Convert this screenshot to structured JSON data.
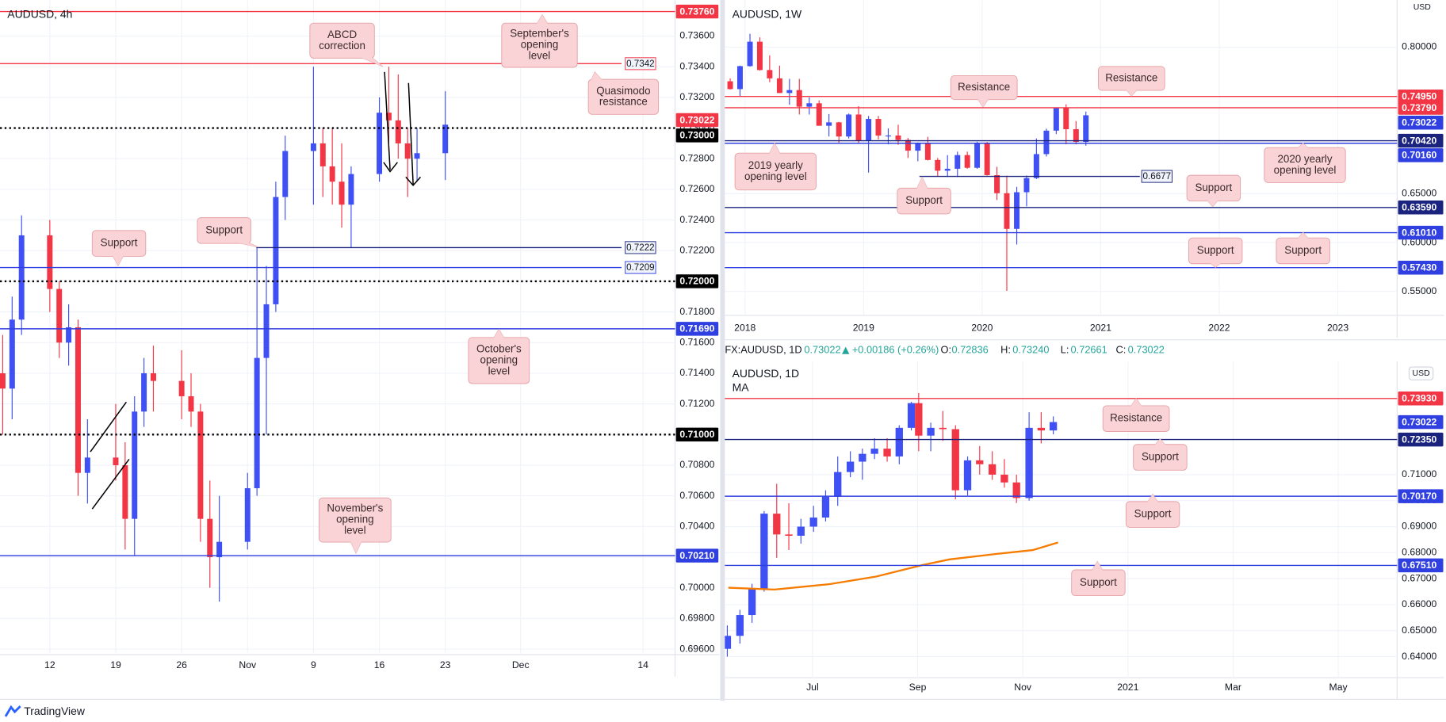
{
  "chart_data": [
    {
      "type": "candlestick",
      "title": "AUDUSD, 4h",
      "x": [
        6,
        7,
        8,
        11,
        12,
        13,
        14,
        15,
        18,
        19,
        20,
        21,
        22,
        25,
        26,
        27,
        28,
        29,
        32,
        33,
        34,
        35,
        36,
        39,
        40,
        41,
        42,
        43,
        46,
        47,
        48,
        49,
        50,
        53
      ],
      "open": [
        0.714,
        0.713,
        0.7175,
        0.723,
        0.7195,
        0.716,
        0.717,
        0.7075,
        0.7085,
        0.708,
        0.7045,
        0.7115,
        0.714,
        0.7135,
        0.7125,
        0.7115,
        0.7045,
        0.702,
        0.703,
        0.7065,
        0.715,
        0.7185,
        0.7255,
        0.7285,
        0.729,
        0.7275,
        0.7265,
        0.725,
        0.727,
        0.731,
        0.7305,
        0.729,
        0.728,
        0.72836
      ],
      "high": [
        0.7165,
        0.719,
        0.7243,
        0.724,
        0.72,
        0.7185,
        0.7175,
        0.711,
        0.712,
        0.7095,
        0.7125,
        0.715,
        0.7158,
        0.7155,
        0.714,
        0.712,
        0.707,
        0.706,
        0.7075,
        0.7222,
        0.721,
        0.7265,
        0.7295,
        0.734,
        0.73,
        0.73,
        0.729,
        0.7275,
        0.732,
        0.734,
        0.7335,
        0.73,
        0.73,
        0.7324
      ],
      "low": [
        0.71,
        0.711,
        0.7165,
        0.718,
        0.715,
        0.7145,
        0.706,
        0.7055,
        0.707,
        0.7025,
        0.7021,
        0.7105,
        0.7115,
        0.711,
        0.7105,
        0.703,
        0.7,
        0.6991,
        0.7025,
        0.706,
        0.71,
        0.718,
        0.724,
        0.725,
        0.7255,
        0.725,
        0.7235,
        0.7222,
        0.7265,
        0.7285,
        0.728,
        0.7255,
        0.7265,
        0.72661
      ],
      "close": [
        0.713,
        0.7175,
        0.723,
        0.7195,
        0.716,
        0.717,
        0.7075,
        0.7085,
        0.708,
        0.7045,
        0.7115,
        0.714,
        0.7135,
        0.7125,
        0.7115,
        0.7045,
        0.702,
        0.703,
        0.7065,
        0.715,
        0.7185,
        0.7255,
        0.7285,
        0.729,
        0.7275,
        0.7265,
        0.725,
        0.727,
        0.731,
        0.7305,
        0.729,
        0.728,
        0.72836,
        0.73022
      ],
      "up_color": "#3f51f5",
      "down_color": "#f23645",
      "xlim": [
        5.71,
        77.4
      ],
      "xticks": [
        {
          "value": 11,
          "label": "12"
        },
        {
          "value": 18,
          "label": "19"
        },
        {
          "value": 25,
          "label": "26"
        },
        {
          "value": 32,
          "label": "Nov"
        },
        {
          "value": 39,
          "label": "9"
        },
        {
          "value": 46,
          "label": "16"
        },
        {
          "value": 53,
          "label": "23"
        },
        {
          "value": 61,
          "label": "Dec"
        },
        {
          "value": 74,
          "label": "14"
        }
      ],
      "ylim": [
        0.69564,
        0.73835
      ],
      "yticks": [
        {
          "value": 0.696,
          "label": "0.69600"
        },
        {
          "value": 0.698,
          "label": "0.69800"
        },
        {
          "value": 0.7,
          "label": "0.70000"
        },
        {
          "value": 0.702,
          "label": "0.70200"
        },
        {
          "value": 0.704,
          "label": "0.70400"
        },
        {
          "value": 0.706,
          "label": "0.70600"
        },
        {
          "value": 0.708,
          "label": "0.70800"
        },
        {
          "value": 0.71,
          "label": "0.71000"
        },
        {
          "value": 0.712,
          "label": "0.71200"
        },
        {
          "value": 0.714,
          "label": "0.71400"
        },
        {
          "value": 0.716,
          "label": "0.71600"
        },
        {
          "value": 0.718,
          "label": "0.71800"
        },
        {
          "value": 0.72,
          "label": "0.72000"
        },
        {
          "value": 0.722,
          "label": "0.72200"
        },
        {
          "value": 0.724,
          "label": "0.72400"
        },
        {
          "value": 0.726,
          "label": "0.72600"
        },
        {
          "value": 0.728,
          "label": "0.72800"
        },
        {
          "value": 0.73,
          "label": "0.73000"
        },
        {
          "value": 0.732,
          "label": "0.73200"
        },
        {
          "value": 0.734,
          "label": "0.73400"
        },
        {
          "value": 0.736,
          "label": "0.73600"
        }
      ],
      "grid": true,
      "levels": [
        {
          "value": 0.7376,
          "label": "0.73760",
          "color": "#f23645",
          "style": "solid"
        },
        {
          "value": 0.7342,
          "label": "0.7342",
          "color": "#f23645",
          "style": "solid"
        },
        {
          "value": 0.73,
          "label": "0.73000",
          "color": "#000000",
          "style": "dotted"
        },
        {
          "value": 0.73022,
          "label": "0.73022",
          "color": "#f23645",
          "style": "none"
        },
        {
          "value": 0.7222,
          "label": "0.7222",
          "color": "#1a237e",
          "style": "solid"
        },
        {
          "value": 0.7209,
          "label": "0.7209",
          "color": "#2f3fe0",
          "style": "solid"
        },
        {
          "value": 0.72,
          "label": "0.72000",
          "color": "#000000",
          "style": "dotted"
        },
        {
          "value": 0.7169,
          "label": "0.71690",
          "color": "#2f3fe0",
          "style": "solid"
        },
        {
          "value": 0.71,
          "label": "0.71000",
          "color": "#000000",
          "style": "dotted"
        },
        {
          "value": 0.7021,
          "label": "0.70210",
          "color": "#2f3fe0",
          "style": "solid"
        }
      ],
      "annotations": [
        {
          "lines": [
            "ABCD",
            "correction"
          ]
        },
        {
          "lines": [
            "September's",
            "opening",
            "level"
          ]
        },
        {
          "lines": [
            "Quasimodo",
            "resistance"
          ]
        },
        {
          "lines": [
            "Support"
          ]
        },
        {
          "lines": [
            "Support"
          ]
        },
        {
          "lines": [
            "October's",
            "opening",
            "level"
          ]
        },
        {
          "lines": [
            "November's",
            "opening",
            "level"
          ]
        }
      ]
    },
    {
      "type": "candlestick",
      "title": "AUDUSD, 1W",
      "axis_unit": "USD",
      "x": [
        2017.875,
        2017.958,
        2018.042,
        2018.125,
        2018.208,
        2018.292,
        2018.375,
        2018.458,
        2018.542,
        2018.625,
        2018.708,
        2018.792,
        2018.875,
        2018.958,
        2019.042,
        2019.125,
        2019.208,
        2019.292,
        2019.375,
        2019.458,
        2019.542,
        2019.625,
        2019.708,
        2019.792,
        2019.875,
        2019.958,
        2020.042,
        2020.125,
        2020.208,
        2020.292,
        2020.375,
        2020.458,
        2020.542,
        2020.625,
        2020.708,
        2020.792,
        2020.875
      ],
      "open": [
        0.765,
        0.757,
        0.7805,
        0.8055,
        0.7765,
        0.768,
        0.753,
        0.756,
        0.739,
        0.7425,
        0.7195,
        0.723,
        0.7085,
        0.731,
        0.7045,
        0.7265,
        0.7095,
        0.7095,
        0.705,
        0.694,
        0.702,
        0.6845,
        0.6735,
        0.6755,
        0.6895,
        0.6765,
        0.702,
        0.669,
        0.6505,
        0.614,
        0.6515,
        0.666,
        0.6905,
        0.7145,
        0.7375,
        0.716,
        0.703
      ],
      "high": [
        0.768,
        0.781,
        0.8136,
        0.81,
        0.7915,
        0.781,
        0.7675,
        0.7675,
        0.7485,
        0.7455,
        0.7315,
        0.7235,
        0.732,
        0.7395,
        0.7295,
        0.7295,
        0.7168,
        0.7205,
        0.707,
        0.7025,
        0.7082,
        0.6865,
        0.6895,
        0.693,
        0.693,
        0.7032,
        0.703,
        0.6775,
        0.6685,
        0.657,
        0.6685,
        0.7065,
        0.7165,
        0.7375,
        0.7414,
        0.7243,
        0.734
      ],
      "low": [
        0.7565,
        0.75,
        0.78,
        0.776,
        0.764,
        0.753,
        0.741,
        0.731,
        0.731,
        0.72,
        0.7085,
        0.702,
        0.7065,
        0.702,
        0.6716,
        0.7055,
        0.7005,
        0.7,
        0.6865,
        0.6832,
        0.684,
        0.6677,
        0.6671,
        0.667,
        0.6755,
        0.6755,
        0.6685,
        0.6435,
        0.5506,
        0.598,
        0.637,
        0.665,
        0.688,
        0.711,
        0.7005,
        0.7005,
        0.6991
      ],
      "close": [
        0.757,
        0.7805,
        0.8055,
        0.7765,
        0.768,
        0.753,
        0.756,
        0.739,
        0.7425,
        0.7195,
        0.723,
        0.7085,
        0.731,
        0.7045,
        0.7265,
        0.7095,
        0.7095,
        0.705,
        0.694,
        0.702,
        0.6845,
        0.6735,
        0.6755,
        0.6895,
        0.6765,
        0.702,
        0.669,
        0.6505,
        0.614,
        0.6515,
        0.666,
        0.6905,
        0.7145,
        0.7375,
        0.716,
        0.703,
        0.73022
      ],
      "up_color": "#3f51f5",
      "down_color": "#f23645",
      "xlim": [
        2017.83,
        2023.5
      ],
      "xticks": [
        2018,
        2019,
        2020,
        2021,
        2022,
        2023
      ],
      "ylim": [
        0.5255,
        0.8481
      ],
      "yticks": [
        {
          "value": 0.55,
          "label": "0.55000"
        },
        {
          "value": 0.6,
          "label": "0.60000"
        },
        {
          "value": 0.65,
          "label": "0.65000"
        },
        {
          "value": 0.8,
          "label": "0.80000"
        }
      ],
      "grid": true,
      "levels": [
        {
          "value": 0.7495,
          "label": "0.74950",
          "color": "#f23645",
          "style": "solid"
        },
        {
          "value": 0.7379,
          "label": "0.73790",
          "color": "#f23645",
          "style": "solid"
        },
        {
          "value": 0.73022,
          "label": "0.73022",
          "color": "#2f3fe0",
          "style": "none"
        },
        {
          "value": 0.7042,
          "label": "0.70420",
          "color": "#1a237e",
          "style": "solid"
        },
        {
          "value": 0.7016,
          "label": "0.70160",
          "color": "#2f3fe0",
          "style": "solid"
        },
        {
          "value": 0.6677,
          "label": "0.6677",
          "color": "#1a237e",
          "style": "solid"
        },
        {
          "value": 0.6359,
          "label": "0.63590",
          "color": "#1a237e",
          "style": "solid"
        },
        {
          "value": 0.6101,
          "label": "0.61010",
          "color": "#2f3fe0",
          "style": "solid"
        },
        {
          "value": 0.5743,
          "label": "0.57430",
          "color": "#2f3fe0",
          "style": "solid"
        }
      ],
      "annotations": [
        {
          "lines": [
            "Resistance"
          ]
        },
        {
          "lines": [
            "Resistance"
          ]
        },
        {
          "lines": [
            "2019 yearly",
            "opening level"
          ]
        },
        {
          "lines": [
            "2020 yearly",
            "opening level"
          ]
        },
        {
          "lines": [
            "Support"
          ]
        },
        {
          "lines": [
            "Support"
          ]
        },
        {
          "lines": [
            "Support"
          ]
        },
        {
          "lines": [
            "Support"
          ]
        }
      ]
    },
    {
      "type": "candlestick",
      "title": "AUDUSD, 1D",
      "axis_unit": "USD",
      "x": [
        4.38,
        4.62,
        4.85,
        5.08,
        5.32,
        5.55,
        5.78,
        6.02,
        6.25,
        6.48,
        6.72,
        6.95,
        7.18,
        7.42,
        7.65,
        7.88,
        8.02,
        8.25,
        8.48,
        8.72,
        8.95,
        9.18,
        9.42,
        9.65,
        9.88,
        10.12,
        10.35,
        10.58
      ],
      "open": [
        0.643,
        0.648,
        0.656,
        0.666,
        0.695,
        0.687,
        0.6865,
        0.69,
        0.6935,
        0.7015,
        0.711,
        0.715,
        0.718,
        0.72,
        0.717,
        0.728,
        0.7375,
        0.725,
        0.728,
        0.7275,
        0.704,
        0.7155,
        0.714,
        0.71,
        0.707,
        0.701,
        0.728,
        0.727
      ],
      "high": [
        0.652,
        0.658,
        0.668,
        0.696,
        0.7065,
        0.699,
        0.693,
        0.698,
        0.704,
        0.717,
        0.719,
        0.72,
        0.724,
        0.724,
        0.729,
        0.738,
        0.7414,
        0.73,
        0.7345,
        0.729,
        0.717,
        0.721,
        0.719,
        0.716,
        0.71,
        0.734,
        0.734,
        0.7324
      ],
      "low": [
        0.64,
        0.645,
        0.653,
        0.665,
        0.678,
        0.681,
        0.6835,
        0.688,
        0.692,
        0.698,
        0.709,
        0.708,
        0.716,
        0.715,
        0.714,
        0.727,
        0.719,
        0.719,
        0.723,
        0.7005,
        0.702,
        0.71,
        0.708,
        0.705,
        0.6991,
        0.7,
        0.722,
        0.7255
      ],
      "close": [
        0.648,
        0.656,
        0.666,
        0.695,
        0.687,
        0.6865,
        0.69,
        0.6935,
        0.7015,
        0.711,
        0.715,
        0.718,
        0.72,
        0.717,
        0.728,
        0.7375,
        0.725,
        0.728,
        0.7275,
        0.704,
        0.7155,
        0.714,
        0.71,
        0.707,
        0.701,
        0.728,
        0.727,
        0.73022
      ],
      "up_color": "#3f51f5",
      "down_color": "#f23645",
      "series": [
        {
          "name": "MA",
          "color": "#f57c00",
          "x": [
            4.4,
            5.28,
            6.33,
            7.21,
            8.09,
            8.61,
            9.49,
            10.19,
            10.67
          ],
          "values": [
            0.6665,
            0.6658,
            0.6679,
            0.6708,
            0.6752,
            0.6774,
            0.6795,
            0.681,
            0.6839
          ]
        }
      ],
      "xlim": [
        4.333,
        17.12
      ],
      "xticks": [
        {
          "value": 6,
          "label": "Jul"
        },
        {
          "value": 8,
          "label": "Sep"
        },
        {
          "value": 10,
          "label": "Nov"
        },
        {
          "value": 12,
          "label": "2021"
        },
        {
          "value": 14,
          "label": "Mar"
        },
        {
          "value": 16,
          "label": "May"
        }
      ],
      "ylim": [
        0.63191,
        0.75353
      ],
      "yticks": [
        {
          "value": 0.64,
          "label": "0.64000"
        },
        {
          "value": 0.65,
          "label": "0.65000"
        },
        {
          "value": 0.66,
          "label": "0.66000"
        },
        {
          "value": 0.67,
          "label": "0.67000"
        },
        {
          "value": 0.68,
          "label": "0.68000"
        },
        {
          "value": 0.69,
          "label": "0.69000"
        },
        {
          "value": 0.7,
          "label": "0.70000"
        },
        {
          "value": 0.71,
          "label": "0.71000"
        }
      ],
      "grid": true,
      "levels": [
        {
          "value": 0.7393,
          "label": "0.73930",
          "color": "#f23645",
          "style": "solid"
        },
        {
          "value": 0.73022,
          "label": "0.73022",
          "color": "#2f3fe0",
          "style": "none"
        },
        {
          "value": 0.7235,
          "label": "0.72350",
          "color": "#1a237e",
          "style": "solid"
        },
        {
          "value": 0.7017,
          "label": "0.70170",
          "color": "#2f3fe0",
          "style": "solid"
        },
        {
          "value": 0.6751,
          "label": "0.67510",
          "color": "#2f3fe0",
          "style": "solid"
        }
      ],
      "annotations": [
        {
          "lines": [
            "Resistance"
          ]
        },
        {
          "lines": [
            "Support"
          ]
        },
        {
          "lines": [
            "Support"
          ]
        },
        {
          "lines": [
            "Support"
          ]
        }
      ]
    }
  ],
  "info_bar": {
    "symbol": "FX:AUDUSD, 1D",
    "last": "0.73022",
    "change": "+0.00186 (+0.26%)",
    "ohlc": [
      [
        "O:",
        "0.72836"
      ],
      [
        "H:",
        "0.73240"
      ],
      [
        "L:",
        "0.72661"
      ],
      [
        "C:",
        "0.73022"
      ]
    ]
  },
  "footer": "TradingView"
}
